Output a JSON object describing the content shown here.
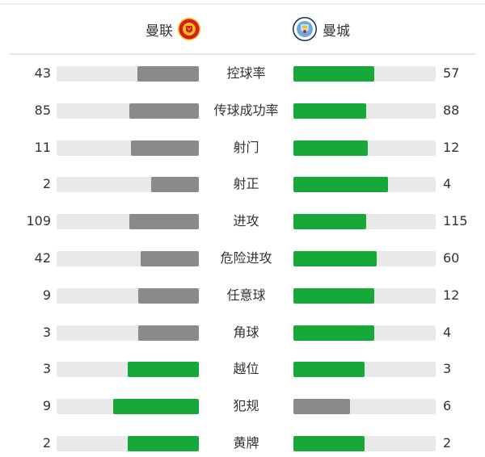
{
  "header": {
    "home_team": "曼联",
    "away_team": "曼城",
    "home_logo_icon": "manchester-united-crest",
    "away_logo_icon": "manchester-city-crest"
  },
  "colors": {
    "leading": "#17a83a",
    "trailing": "#8a8a8a",
    "track": "#e9e9e9"
  },
  "stats": [
    {
      "label": "控球率",
      "home": "43",
      "away": "57"
    },
    {
      "label": "传球成功率",
      "home": "85",
      "away": "88"
    },
    {
      "label": "射门",
      "home": "11",
      "away": "12"
    },
    {
      "label": "射正",
      "home": "2",
      "away": "4"
    },
    {
      "label": "进攻",
      "home": "109",
      "away": "115"
    },
    {
      "label": "危险进攻",
      "home": "42",
      "away": "60"
    },
    {
      "label": "任意球",
      "home": "9",
      "away": "12"
    },
    {
      "label": "角球",
      "home": "3",
      "away": "4"
    },
    {
      "label": "越位",
      "home": "3",
      "away": "3"
    },
    {
      "label": "犯规",
      "home": "9",
      "away": "6"
    },
    {
      "label": "黄牌",
      "home": "2",
      "away": "2"
    }
  ]
}
